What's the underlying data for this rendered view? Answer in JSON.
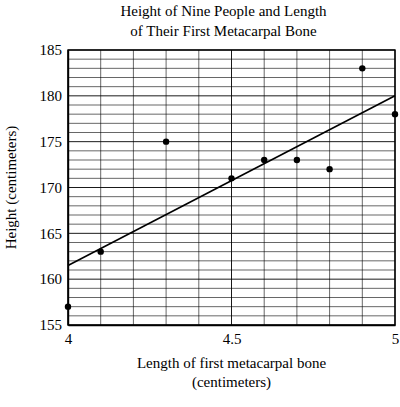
{
  "chart_data": {
    "type": "scatter",
    "title": [
      "Height of Nine People and Length",
      "of Their First Metacarpal Bone"
    ],
    "x_label": [
      "Length of first metacarpal bone",
      "(centimeters)"
    ],
    "y_label": "Height (centimeters)",
    "x": [
      4.0,
      4.1,
      4.3,
      4.5,
      4.6,
      4.7,
      4.8,
      4.9,
      5.0
    ],
    "values": [
      157,
      163,
      175,
      171,
      173,
      173,
      172,
      183,
      178
    ],
    "color": "#000000",
    "marker": "circle",
    "trend_line": {
      "x": [
        4,
        5
      ],
      "values": [
        161.5,
        180
      ],
      "line_style": "solid",
      "color": "#000000"
    },
    "xlim": [
      4,
      5
    ],
    "xticks": [
      4,
      4.5,
      5
    ],
    "ylim": [
      155,
      185
    ],
    "yticks": [
      155,
      160,
      165,
      170,
      175,
      180,
      185
    ],
    "grid": true
  }
}
